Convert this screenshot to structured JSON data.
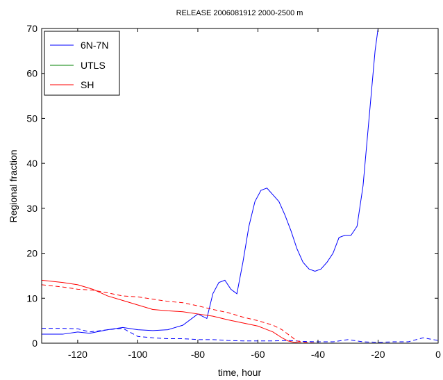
{
  "chart_data": {
    "type": "line",
    "title": "RELEASE 2006081912 2000-2500 m",
    "xlabel": "time, hour",
    "ylabel": "Regional fraction",
    "xlim": [
      -132,
      0
    ],
    "ylim": [
      0,
      70
    ],
    "xticks": [
      -120,
      -100,
      -80,
      -60,
      -40,
      -20,
      0
    ],
    "yticks": [
      0,
      10,
      20,
      30,
      40,
      50,
      60,
      70
    ],
    "xtick_labels": [
      "-120",
      "-100",
      "-80",
      "-60",
      "-40",
      "-20",
      "0"
    ],
    "ytick_labels": [
      "0",
      "10",
      "20",
      "30",
      "40",
      "50",
      "60",
      "70"
    ],
    "grid": false,
    "legend_position": "top-left",
    "colors": {
      "blue": "#0000ff",
      "green": "#008000",
      "red": "#ff0000"
    },
    "series": [
      {
        "name": "6N-7N",
        "color": "#0000ff",
        "style": "solid",
        "x": [
          -132,
          -125,
          -120,
          -116,
          -110,
          -105,
          -100,
          -95,
          -90,
          -85,
          -80,
          -77,
          -75,
          -73,
          -71,
          -69,
          -67,
          -65,
          -63,
          -61,
          -59,
          -57,
          -55,
          -53,
          -51,
          -49,
          -47,
          -45,
          -43,
          -41,
          -39,
          -37,
          -35,
          -33,
          -31,
          -29,
          -27,
          -25,
          -23,
          -21,
          -20
        ],
        "y": [
          2.0,
          2.0,
          2.5,
          2.2,
          3.0,
          3.5,
          3.0,
          2.8,
          3.0,
          4.0,
          6.5,
          5.5,
          11.0,
          13.5,
          14.0,
          12.0,
          11.0,
          18.0,
          26.0,
          31.5,
          34.0,
          34.5,
          33.0,
          31.5,
          28.5,
          25.0,
          21.0,
          18.0,
          16.5,
          16.0,
          16.5,
          18.0,
          20.0,
          23.5,
          24.0,
          24.0,
          26.0,
          35.0,
          50.0,
          65.0,
          70.0
        ]
      },
      {
        "name": "",
        "color": "#0000ff",
        "style": "dashed",
        "x": [
          -132,
          -125,
          -120,
          -116,
          -110,
          -105,
          -100,
          -95,
          -90,
          -85,
          -80,
          -75,
          -70,
          -65,
          -60,
          -55,
          -50,
          -45,
          -40,
          -35,
          -30,
          -25,
          -20,
          -15,
          -10,
          -5,
          0
        ],
        "y": [
          3.3,
          3.3,
          3.2,
          2.5,
          3.0,
          3.3,
          1.5,
          1.2,
          1.0,
          1.0,
          0.8,
          0.8,
          0.6,
          0.5,
          0.5,
          0.5,
          0.6,
          0.4,
          0.3,
          0.3,
          0.8,
          0.3,
          0.2,
          0.3,
          0.3,
          1.2,
          0.6
        ]
      },
      {
        "name": "UTLS",
        "color": "#008000",
        "style": "solid",
        "x": [
          -132,
          0
        ],
        "y": [
          0,
          0
        ]
      },
      {
        "name": "SH",
        "color": "#ff0000",
        "style": "solid",
        "x": [
          -132,
          -125,
          -120,
          -115,
          -110,
          -105,
          -100,
          -95,
          -90,
          -85,
          -80,
          -75,
          -70,
          -65,
          -60,
          -55,
          -52,
          -50,
          -48,
          -45,
          -40,
          -30,
          -20,
          -10,
          0
        ],
        "y": [
          14.0,
          13.5,
          13.0,
          12.0,
          10.5,
          9.5,
          8.5,
          7.5,
          7.2,
          7.0,
          6.5,
          6.0,
          5.2,
          4.5,
          3.8,
          2.5,
          1.2,
          0.5,
          0.2,
          0.0,
          0.0,
          0.0,
          0.0,
          0.0,
          0.0
        ]
      },
      {
        "name": "",
        "color": "#ff0000",
        "style": "dashed",
        "x": [
          -132,
          -125,
          -120,
          -115,
          -110,
          -105,
          -100,
          -95,
          -90,
          -85,
          -80,
          -75,
          -70,
          -65,
          -60,
          -55,
          -52,
          -49,
          -47,
          -45,
          -40,
          -30,
          -20,
          -10,
          0
        ],
        "y": [
          13.0,
          12.5,
          12.0,
          11.8,
          11.2,
          10.5,
          10.3,
          9.8,
          9.3,
          9.0,
          8.3,
          7.5,
          6.8,
          5.8,
          5.0,
          4.0,
          3.0,
          1.5,
          0.5,
          0.2,
          0.0,
          0.0,
          0.0,
          0.0,
          0.0
        ]
      }
    ]
  }
}
